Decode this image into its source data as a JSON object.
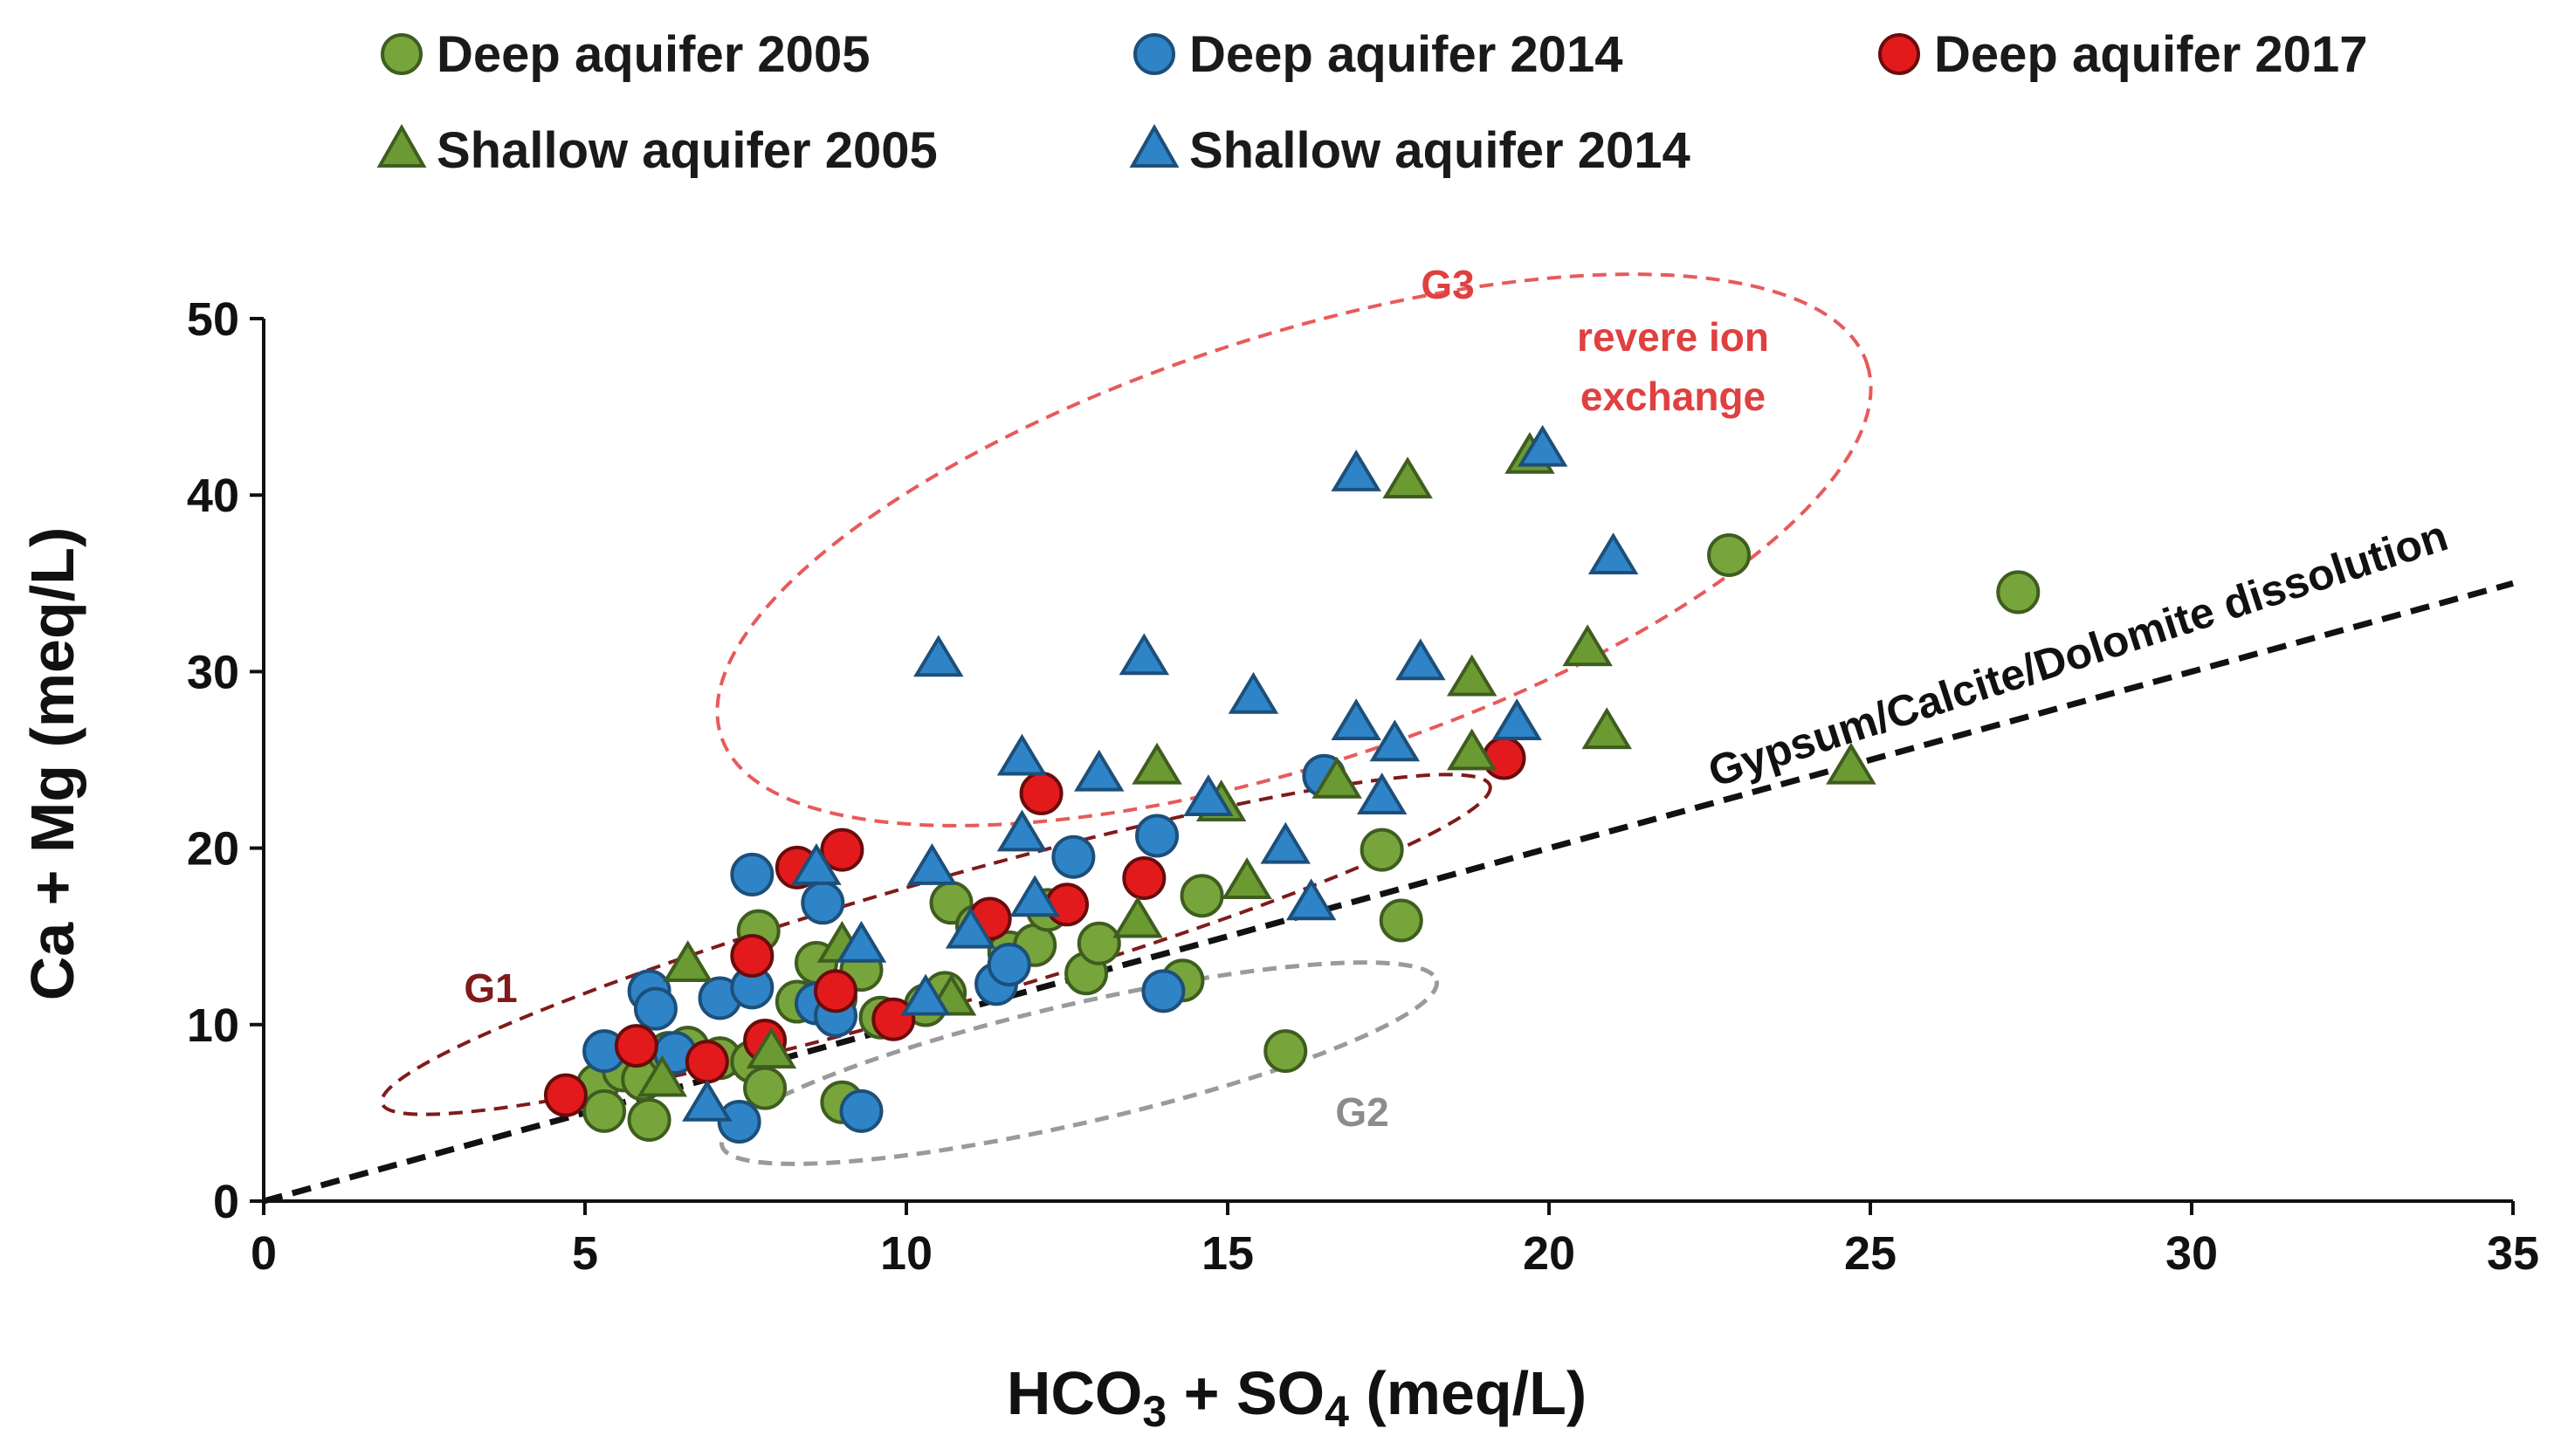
{
  "chart_data": {
    "type": "scatter",
    "xlabel_main": "HCO",
    "xlabel_sub1": "3",
    "xlabel_mid": " + SO",
    "xlabel_sub2": "4",
    "xlabel_end": " (meq/L)",
    "ylabel": "Ca + Mg (meq/L)",
    "xlim": [
      0,
      35
    ],
    "ylim": [
      0,
      50
    ],
    "xticks": [
      0,
      5,
      10,
      15,
      20,
      25,
      30,
      35
    ],
    "yticks": [
      0,
      10,
      20,
      30,
      40,
      50
    ],
    "grid": false,
    "legend_position": "top",
    "series": [
      {
        "name": "Deep aquifer 2005",
        "marker": "circle",
        "color": "#77a53b",
        "points": [
          [
            5.2,
            6.6
          ],
          [
            5.3,
            5.1
          ],
          [
            5.6,
            7.4
          ],
          [
            5.9,
            6.9
          ],
          [
            6.0,
            4.6
          ],
          [
            6.3,
            8.4
          ],
          [
            6.6,
            8.7
          ],
          [
            7.1,
            8.1
          ],
          [
            7.6,
            7.9
          ],
          [
            7.7,
            15.3
          ],
          [
            7.8,
            6.4
          ],
          [
            8.3,
            11.3
          ],
          [
            8.6,
            13.5
          ],
          [
            8.9,
            11.5
          ],
          [
            9.0,
            5.6
          ],
          [
            9.3,
            13.1
          ],
          [
            9.6,
            10.4
          ],
          [
            10.3,
            11.1
          ],
          [
            10.6,
            11.8
          ],
          [
            10.7,
            16.9
          ],
          [
            11.1,
            15.6
          ],
          [
            11.6,
            14.1
          ],
          [
            12.0,
            14.5
          ],
          [
            12.2,
            16.5
          ],
          [
            12.8,
            12.9
          ],
          [
            13.0,
            14.6
          ],
          [
            14.3,
            12.5
          ],
          [
            14.6,
            17.3
          ],
          [
            15.9,
            8.5
          ],
          [
            17.4,
            19.9
          ],
          [
            17.7,
            15.9
          ],
          [
            22.8,
            36.6
          ],
          [
            27.3,
            34.5
          ]
        ]
      },
      {
        "name": "Deep aquifer 2014",
        "marker": "circle",
        "color": "#2e84c6",
        "points": [
          [
            5.3,
            8.5
          ],
          [
            6.0,
            11.9
          ],
          [
            6.1,
            10.9
          ],
          [
            6.4,
            8.4
          ],
          [
            7.1,
            11.5
          ],
          [
            7.4,
            4.5
          ],
          [
            7.6,
            12.1
          ],
          [
            7.6,
            18.5
          ],
          [
            8.6,
            11.2
          ],
          [
            8.7,
            16.9
          ],
          [
            8.9,
            10.5
          ],
          [
            9.3,
            5.1
          ],
          [
            11.4,
            12.3
          ],
          [
            11.6,
            13.4
          ],
          [
            12.6,
            19.5
          ],
          [
            13.9,
            20.7
          ],
          [
            14.0,
            11.9
          ],
          [
            16.5,
            24.1
          ]
        ]
      },
      {
        "name": "Deep aquifer 2017",
        "marker": "circle",
        "color": "#e31a1c",
        "points": [
          [
            4.7,
            6.0
          ],
          [
            5.8,
            8.8
          ],
          [
            6.9,
            7.9
          ],
          [
            7.6,
            13.9
          ],
          [
            7.8,
            9.1
          ],
          [
            8.3,
            18.9
          ],
          [
            8.9,
            11.9
          ],
          [
            9.0,
            19.9
          ],
          [
            9.8,
            10.3
          ],
          [
            11.3,
            16.0
          ],
          [
            12.1,
            23.1
          ],
          [
            12.5,
            16.8
          ],
          [
            13.7,
            18.3
          ],
          [
            19.3,
            25.1
          ]
        ]
      },
      {
        "name": "Shallow aquifer 2005",
        "marker": "triangle",
        "color": "#6b9a33",
        "points": [
          [
            6.2,
            6.9
          ],
          [
            6.6,
            13.4
          ],
          [
            7.9,
            8.5
          ],
          [
            9.0,
            14.5
          ],
          [
            10.7,
            11.5
          ],
          [
            13.6,
            15.9
          ],
          [
            13.9,
            24.6
          ],
          [
            14.9,
            22.5
          ],
          [
            15.3,
            18.1
          ],
          [
            16.7,
            23.8
          ],
          [
            17.8,
            40.8
          ],
          [
            18.8,
            29.6
          ],
          [
            18.8,
            25.4
          ],
          [
            19.7,
            42.2
          ],
          [
            20.6,
            31.3
          ],
          [
            20.9,
            26.6
          ],
          [
            24.7,
            24.6
          ]
        ]
      },
      {
        "name": "Shallow aquifer 2014",
        "marker": "triangle",
        "color": "#2e84c6",
        "points": [
          [
            6.9,
            5.5
          ],
          [
            8.6,
            18.9
          ],
          [
            9.3,
            14.5
          ],
          [
            10.3,
            11.5
          ],
          [
            10.4,
            18.9
          ],
          [
            10.5,
            30.7
          ],
          [
            11.0,
            15.3
          ],
          [
            11.8,
            25.1
          ],
          [
            11.8,
            20.8
          ],
          [
            12.0,
            17.1
          ],
          [
            13.0,
            24.2
          ],
          [
            13.7,
            30.8
          ],
          [
            14.7,
            22.8
          ],
          [
            15.4,
            28.6
          ],
          [
            15.9,
            20.1
          ],
          [
            16.3,
            16.9
          ],
          [
            17.0,
            41.2
          ],
          [
            17.0,
            27.1
          ],
          [
            17.4,
            22.9
          ],
          [
            17.6,
            25.9
          ],
          [
            18.0,
            30.5
          ],
          [
            19.5,
            27.1
          ],
          [
            19.9,
            42.6
          ],
          [
            21.0,
            36.5
          ]
        ]
      }
    ],
    "reference_line": {
      "label": "Gypsum/Calcite/Dolomite dissolution",
      "from": [
        0,
        0
      ],
      "to": [
        35,
        35
      ],
      "color": "#111111"
    },
    "annotations": [
      {
        "label": "G1",
        "color": "#7f1b1b"
      },
      {
        "label": "G2",
        "color": "#8c8c8c"
      },
      {
        "label": "G3",
        "color": "#e04040"
      },
      {
        "label": "revere ion",
        "color": "#e04040"
      },
      {
        "label": "exchange",
        "color": "#e04040"
      }
    ]
  }
}
